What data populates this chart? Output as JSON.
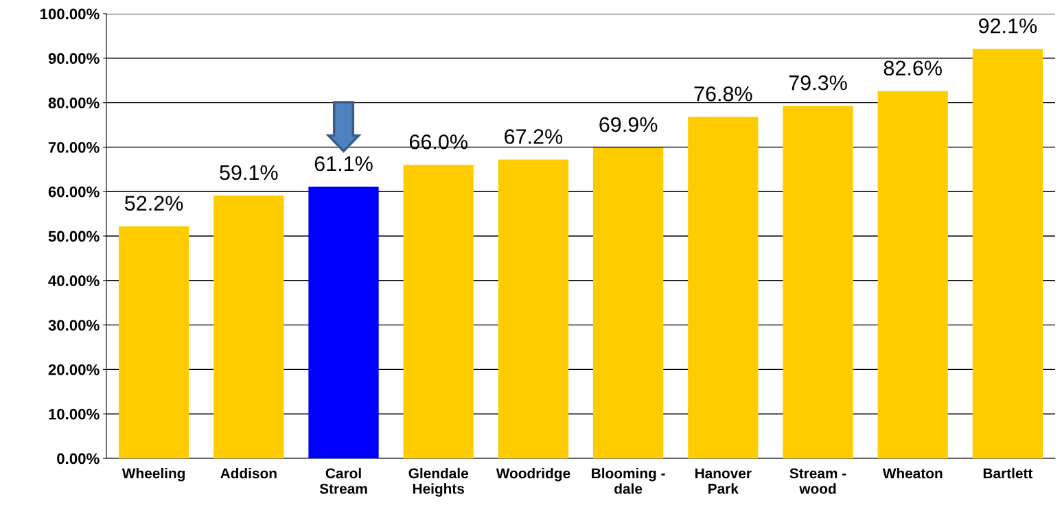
{
  "chart_data": {
    "type": "bar",
    "categories": [
      "Wheeling",
      "Addison",
      "Carol\nStream",
      "Glendale\nHeights",
      "Woodridge",
      "Blooming -\ndale",
      "Hanover\nPark",
      "Stream -\nwood",
      "Wheaton",
      "Bartlett"
    ],
    "values": [
      52.2,
      59.1,
      61.1,
      66.0,
      67.2,
      69.9,
      76.8,
      79.3,
      82.6,
      92.1
    ],
    "value_labels": [
      "52.2%",
      "59.1%",
      "61.1%",
      "66.0%",
      "67.2%",
      "69.9%",
      "76.8%",
      "79.3%",
      "82.6%",
      "92.1%"
    ],
    "colors": [
      "#ffcc00",
      "#ffcc00",
      "#0000ff",
      "#ffcc00",
      "#ffcc00",
      "#ffcc00",
      "#ffcc00",
      "#ffcc00",
      "#ffcc00",
      "#ffcc00"
    ],
    "ylim": [
      0,
      100
    ],
    "yticks": [
      {
        "value": 0,
        "label": "0.00%"
      },
      {
        "value": 10,
        "label": "10.00%"
      },
      {
        "value": 20,
        "label": "20.00%"
      },
      {
        "value": 30,
        "label": "30.00%"
      },
      {
        "value": 40,
        "label": "40.00%"
      },
      {
        "value": 50,
        "label": "50.00%"
      },
      {
        "value": 60,
        "label": "60.00%"
      },
      {
        "value": 70,
        "label": "70.00%"
      },
      {
        "value": 80,
        "label": "80.00%"
      },
      {
        "value": 90,
        "label": "90.00%"
      },
      {
        "value": 100,
        "label": "100.00%"
      }
    ],
    "grid": "y",
    "legend": false
  }
}
